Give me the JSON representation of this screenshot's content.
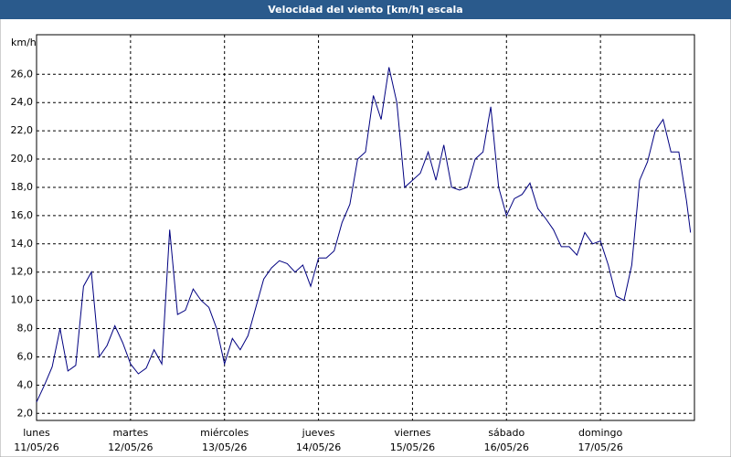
{
  "chart_data": {
    "type": "line",
    "title": "Velocidad del viento [km/h] escala",
    "y_label": "km/h",
    "x": [
      0,
      2,
      4,
      6,
      8,
      10,
      12,
      14,
      16,
      18,
      20,
      22,
      24,
      26,
      28,
      30,
      32,
      34,
      36,
      38,
      40,
      42,
      44,
      46,
      48,
      50,
      52,
      54,
      56,
      58,
      60,
      62,
      64,
      66,
      68,
      70,
      72,
      74,
      76,
      78,
      80,
      82,
      84,
      86,
      88,
      90,
      92,
      94,
      96,
      98,
      100,
      102,
      104,
      106,
      108,
      110,
      112,
      114,
      116,
      118,
      120,
      122,
      124,
      126,
      128,
      130,
      132,
      134,
      136,
      138,
      140,
      142,
      144,
      146,
      148,
      150,
      152,
      154,
      156,
      158,
      160,
      162,
      164,
      166,
      167
    ],
    "series": [
      {
        "name": "Velocidad del viento",
        "color": "#000080",
        "values": [
          2.8,
          4.0,
          5.3,
          8.0,
          5.0,
          5.4,
          11.0,
          12.0,
          6.0,
          6.8,
          8.2,
          7.0,
          5.5,
          4.8,
          5.2,
          6.5,
          5.5,
          15.0,
          9.0,
          9.3,
          10.8,
          10.0,
          9.5,
          8.0,
          5.5,
          7.3,
          6.5,
          7.5,
          9.5,
          11.5,
          12.3,
          12.8,
          12.6,
          12.0,
          12.5,
          11.0,
          13.0,
          13.0,
          13.5,
          15.5,
          16.8,
          20.0,
          20.5,
          24.5,
          22.8,
          26.5,
          24.0,
          18.0,
          18.5,
          19.0,
          20.5,
          18.5,
          21.0,
          18.0,
          17.8,
          18.0,
          20.0,
          20.5,
          23.7,
          18.0,
          16.0,
          17.2,
          17.5,
          18.3,
          16.5,
          15.8,
          15.0,
          13.8,
          13.8,
          13.2,
          14.8,
          14.0,
          14.2,
          12.5,
          10.3,
          10.0,
          12.5,
          18.5,
          19.8,
          22.0,
          22.8,
          20.5,
          20.5,
          17.0,
          14.8
        ]
      }
    ],
    "xlim": [
      0,
      168
    ],
    "xticks": [
      {
        "value": 0,
        "label": "lunes",
        "date": "11/05/26"
      },
      {
        "value": 24,
        "label": "martes",
        "date": "12/05/26"
      },
      {
        "value": 48,
        "label": "miércoles",
        "date": "13/05/26"
      },
      {
        "value": 72,
        "label": "jueves",
        "date": "14/05/26"
      },
      {
        "value": 96,
        "label": "viernes",
        "date": "15/05/26"
      },
      {
        "value": 120,
        "label": "sábado",
        "date": "16/05/26"
      },
      {
        "value": 144,
        "label": "domingo",
        "date": "17/05/26"
      }
    ],
    "ylim": [
      1.5,
      28.8
    ],
    "yticks": [
      {
        "value": 2,
        "label": "2,0"
      },
      {
        "value": 4,
        "label": "4,0"
      },
      {
        "value": 6,
        "label": "6,0"
      },
      {
        "value": 8,
        "label": "8,0"
      },
      {
        "value": 10,
        "label": "10,0"
      },
      {
        "value": 12,
        "label": "12,0"
      },
      {
        "value": 14,
        "label": "14,0"
      },
      {
        "value": 16,
        "label": "16,0"
      },
      {
        "value": 18,
        "label": "18,0"
      },
      {
        "value": 20,
        "label": "20,0"
      },
      {
        "value": 22,
        "label": "22,0"
      },
      {
        "value": 24,
        "label": "24,0"
      },
      {
        "value": 26,
        "label": "26,0"
      }
    ],
    "grid": true
  }
}
